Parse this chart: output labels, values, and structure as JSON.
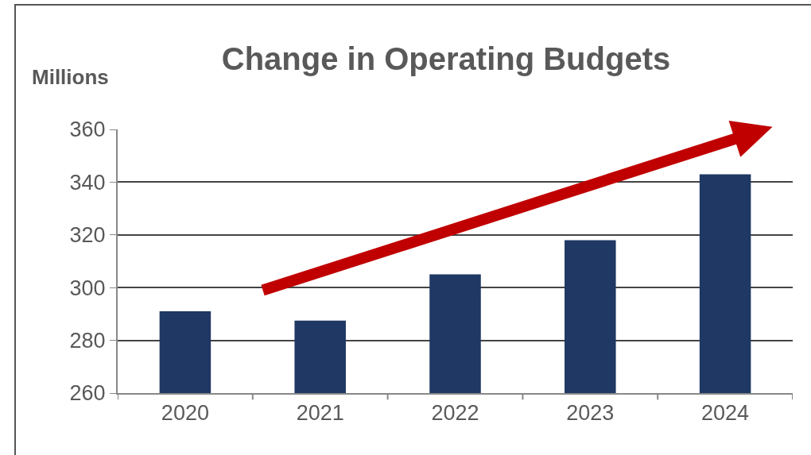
{
  "chart_data": {
    "type": "bar",
    "title": "Change in Operating Budgets",
    "ylabel": "Millions",
    "categories": [
      "2020",
      "2021",
      "2022",
      "2023",
      "2024"
    ],
    "values": [
      291,
      287.5,
      305,
      318,
      343
    ],
    "color": "#1f3864",
    "ylim": [
      260,
      360
    ],
    "yticks": [
      260,
      280,
      300,
      320,
      340,
      360
    ],
    "grid": "y"
  }
}
